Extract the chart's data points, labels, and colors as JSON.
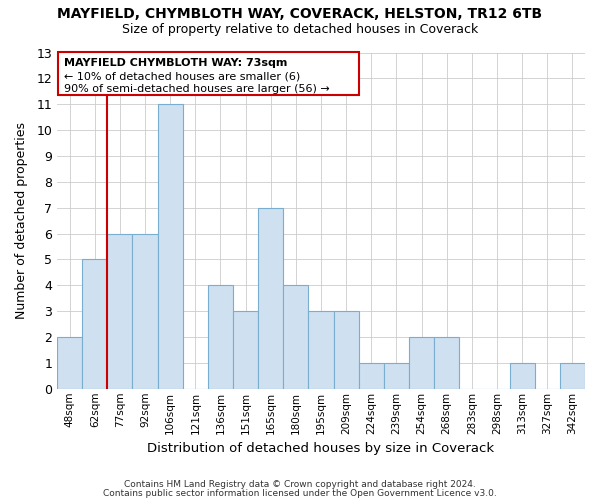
{
  "title": "MAYFIELD, CHYMBLOTH WAY, COVERACK, HELSTON, TR12 6TB",
  "subtitle": "Size of property relative to detached houses in Coverack",
  "xlabel": "Distribution of detached houses by size in Coverack",
  "ylabel": "Number of detached properties",
  "bin_labels": [
    "48sqm",
    "62sqm",
    "77sqm",
    "92sqm",
    "106sqm",
    "121sqm",
    "136sqm",
    "151sqm",
    "165sqm",
    "180sqm",
    "195sqm",
    "209sqm",
    "224sqm",
    "239sqm",
    "254sqm",
    "268sqm",
    "283sqm",
    "298sqm",
    "313sqm",
    "327sqm",
    "342sqm"
  ],
  "bar_heights": [
    2,
    5,
    6,
    6,
    11,
    0,
    4,
    3,
    7,
    4,
    3,
    3,
    1,
    1,
    2,
    2,
    0,
    0,
    1,
    0,
    1
  ],
  "bar_color": "#cfe0f0",
  "bar_edge_color": "#7aaecf",
  "ylim": [
    0,
    13
  ],
  "yticks": [
    0,
    1,
    2,
    3,
    4,
    5,
    6,
    7,
    8,
    9,
    10,
    11,
    12,
    13
  ],
  "annotation_title": "MAYFIELD CHYMBLOTH WAY: 73sqm",
  "annotation_line1": "← 10% of detached houses are smaller (6)",
  "annotation_line2": "90% of semi-detached houses are larger (56) →",
  "footer1": "Contains HM Land Registry data © Crown copyright and database right 2024.",
  "footer2": "Contains public sector information licensed under the Open Government Licence v3.0.",
  "grid_color": "#cccccc",
  "subject_line_color": "#cc0000",
  "box_edge_color": "#cc0000",
  "background_color": "#ffffff",
  "subject_bar_index": 2
}
